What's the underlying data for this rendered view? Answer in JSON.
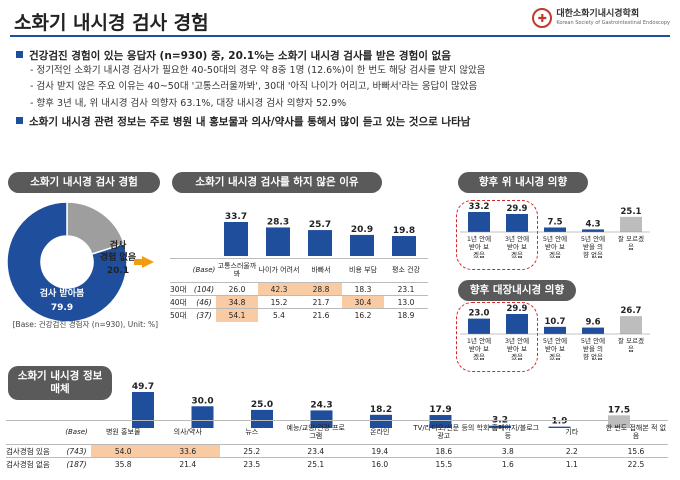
{
  "title": "소화기 내시경 검사 경험",
  "logo": {
    "name": "대한소화기내시경학회",
    "sub": "Korean Society of Gastrointestinal Endoscopy"
  },
  "bullets": [
    {
      "text": "건강검진 경험이 있는 응답자 (n=930) 중, 20.1%는 소화기 내시경 검사를 받은 경험이 없음",
      "subs": [
        "- 정기적인 소화기 내시경 검사가 필요한 40-50대의 경우 약 8중 1명 (12.6%)이 한 번도 해당 검사를 받지 않았음",
        "- 검사 받지 않은 주요 이유는 40~50대 '고통스러울까봐', 30대 '아직 나이가 어리고, 바빠서'라는 응답이 많았음",
        "- 향후 3년 내, 위 내시경 검사 의향자 63.1%, 대장 내시경 검사 의향자 52.9%"
      ]
    },
    {
      "text": "소화기 내시경 관련 정보는 주로 병원 내 홍보물과 의사/약사를 통해서 많이 듣고 있는 것으로 나타남",
      "subs": []
    }
  ],
  "panel_experience": {
    "title": "소화기 내시경 검사 경험",
    "note": "[Base: 건강검진 경험자 (n=930), Unit: %]"
  },
  "panel_reasons": {
    "title": "소화기 내시경 검사를 하지 않은 이유"
  },
  "panel_stomach": {
    "title": "향후 위 내시경 의향"
  },
  "panel_colon": {
    "title": "향후 대장내시경 의향"
  },
  "panel_info": {
    "title": "소화기 내시경 정보매체"
  },
  "chart_data": [
    {
      "type": "pie",
      "title": "소화기 내시경 검사 경험",
      "slices": [
        {
          "label": "검사 받아봄",
          "value": 79.9,
          "color": "#1f4e9c"
        },
        {
          "label": "검사 경험 없음",
          "value": 20.1,
          "color": "#9e9e9e"
        }
      ],
      "note": "[Base: 건강검진 경험자 (n=930), Unit: %]"
    },
    {
      "type": "bar",
      "title": "소화기 내시경 검사를 하지 않은 이유",
      "categories": [
        "고통스러울까 봐",
        "나이가 어려서",
        "바빠서",
        "비용 부담",
        "평소 건강"
      ],
      "values": [
        33.7,
        28.3,
        25.7,
        20.9,
        19.8
      ],
      "colors": [
        "#1f4e9c",
        "#1f4e9c",
        "#1f4e9c",
        "#1f4e9c",
        "#1f4e9c"
      ],
      "table": {
        "base_header": "(Base)",
        "rows": [
          {
            "label": "30대",
            "base": "(104)",
            "values": [
              "26.0",
              "42.3",
              "28.8",
              "18.3",
              "23.1"
            ],
            "highlight": [
              false,
              true,
              true,
              false,
              false
            ]
          },
          {
            "label": "40대",
            "base": "(46)",
            "values": [
              "34.8",
              "15.2",
              "21.7",
              "30.4",
              "13.0"
            ],
            "highlight": [
              true,
              false,
              false,
              true,
              false
            ]
          },
          {
            "label": "50대",
            "base": "(37)",
            "values": [
              "54.1",
              "5.4",
              "21.6",
              "16.2",
              "18.9"
            ],
            "highlight": [
              true,
              false,
              false,
              false,
              false
            ]
          }
        ]
      }
    },
    {
      "type": "bar",
      "title": "향후 위 내시경 의향",
      "categories": [
        "1년 안에 받아 보겠음",
        "3년 안에 받아 보겠음",
        "5년 안에 받아 보겠음",
        "5년 안에 받을 의향 없음",
        "잘 모르겠음"
      ],
      "values": [
        33.2,
        29.9,
        7.5,
        4.3,
        25.1
      ],
      "colors": [
        "#1f4e9c",
        "#1f4e9c",
        "#1f4e9c",
        "#1f4e9c",
        "#bdbdbd"
      ]
    },
    {
      "type": "bar",
      "title": "향후 대장내시경 의향",
      "categories": [
        "1년 안에 받아 보겠음",
        "3년 안에 받아 보겠음",
        "5년 안에 받아 보겠음",
        "5년 안에 받을 의향 없음",
        "잘 모르겠음"
      ],
      "values": [
        23.0,
        29.9,
        10.7,
        9.6,
        26.7
      ],
      "colors": [
        "#1f4e9c",
        "#1f4e9c",
        "#1f4e9c",
        "#1f4e9c",
        "#bdbdbd"
      ]
    },
    {
      "type": "bar",
      "title": "소화기 내시경 정보매체",
      "categories": [
        "병원 홍보물",
        "의사/약사",
        "뉴스",
        "예능/교양/건강 프로그램",
        "온라인",
        "TV/라디오/신문 등의 광고",
        "학회 홈페이지/블로그 등",
        "기타",
        "한 번도 접해본 적 없음"
      ],
      "values": [
        49.7,
        30.0,
        25.0,
        24.3,
        18.2,
        17.9,
        3.2,
        1.9,
        17.5
      ],
      "colors": [
        "#1f4e9c",
        "#1f4e9c",
        "#1f4e9c",
        "#1f4e9c",
        "#1f4e9c",
        "#1f4e9c",
        "#1f4e9c",
        "#1f4e9c",
        "#bdbdbd"
      ],
      "table": {
        "base_header": "(Base)",
        "rows": [
          {
            "label": "검사경험 있음",
            "base": "(743)",
            "values": [
              "54.0",
              "33.6",
              "25.2",
              "23.4",
              "19.4",
              "18.6",
              "3.8",
              "2.2",
              "15.6"
            ],
            "highlight": [
              true,
              true,
              false,
              false,
              false,
              false,
              false,
              false,
              false
            ]
          },
          {
            "label": "검사경험 없음",
            "base": "(187)",
            "values": [
              "35.8",
              "21.4",
              "23.5",
              "25.1",
              "16.0",
              "15.5",
              "1.6",
              "1.1",
              "22.5"
            ],
            "highlight": [
              false,
              false,
              false,
              false,
              false,
              false,
              false,
              false,
              false
            ]
          }
        ]
      }
    }
  ]
}
